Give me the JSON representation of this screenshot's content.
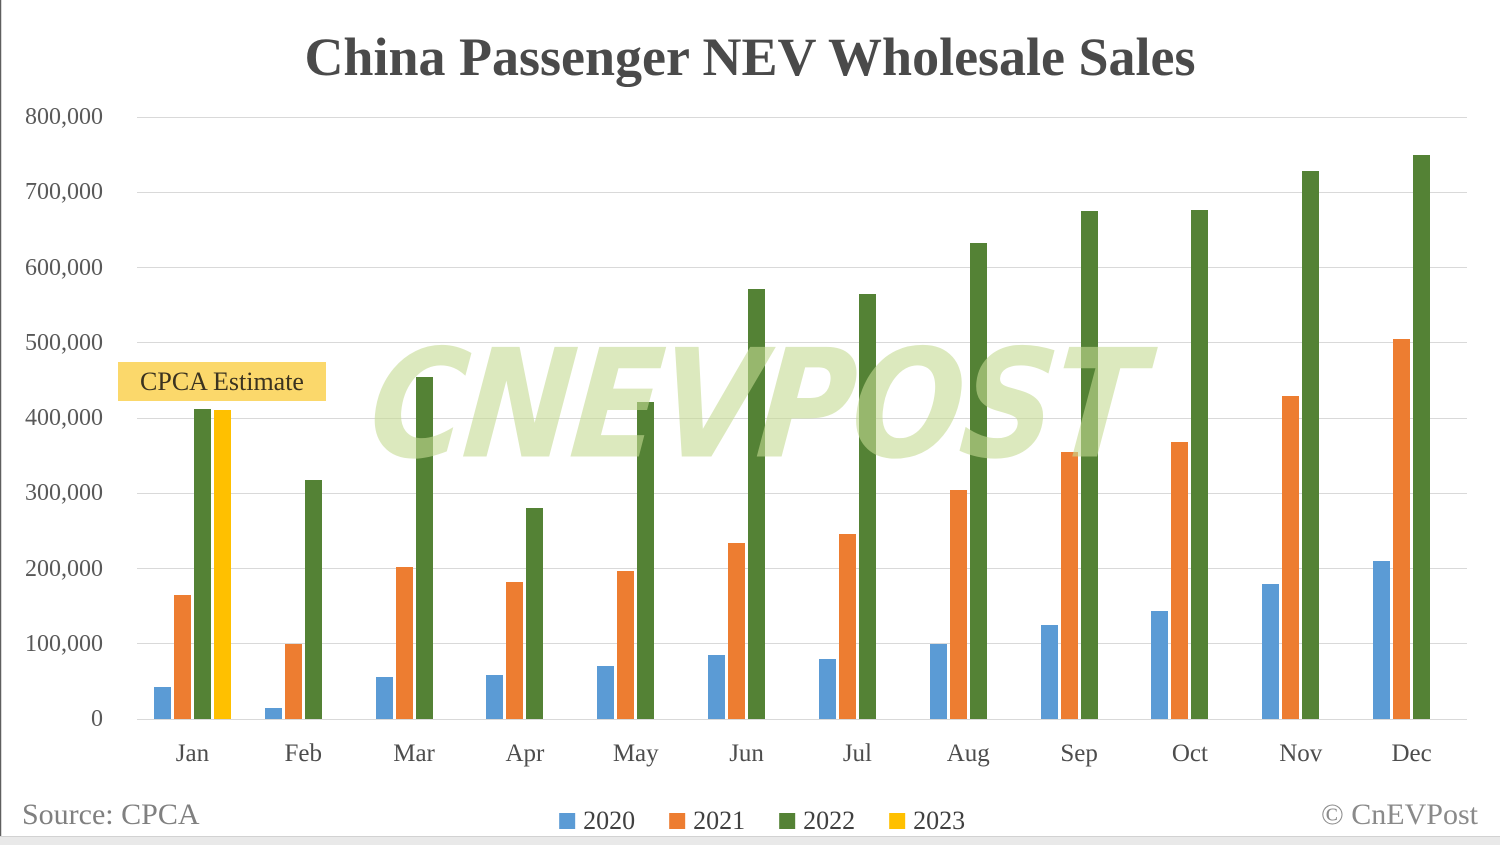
{
  "title": "China Passenger NEV Wholesale Sales",
  "annotation": {
    "label": "CPCA Estimate"
  },
  "watermark": {
    "text": "CNEVPOST"
  },
  "footer": {
    "source": "Source: CPCA",
    "copyright": "© CnEVPost"
  },
  "colors": {
    "series_2020": "#5B9BD5",
    "series_2021": "#ED7D31",
    "series_2022": "#548235",
    "series_2023": "#FFC000",
    "gridline": "#D9D9D9",
    "title_text": "#4A4A4A",
    "axis_text": "#595959",
    "annotation_bg": "#FBD86B",
    "watermark_green": "#D9E8BA",
    "footer_text": "#808080"
  },
  "chart_data": {
    "type": "bar",
    "title": "China Passenger NEV Wholesale Sales",
    "xlabel": "",
    "ylabel": "",
    "categories": [
      "Jan",
      "Feb",
      "Mar",
      "Apr",
      "May",
      "Jun",
      "Jul",
      "Aug",
      "Sep",
      "Oct",
      "Nov",
      "Dec"
    ],
    "series": [
      {
        "name": "2020",
        "color": "#5B9BD5",
        "values": [
          42000,
          15000,
          56000,
          58000,
          70000,
          85000,
          80000,
          100000,
          125000,
          144000,
          180000,
          210000
        ]
      },
      {
        "name": "2021",
        "color": "#ED7D31",
        "values": [
          165000,
          100000,
          202000,
          182000,
          197000,
          234000,
          246000,
          304000,
          355000,
          368000,
          429000,
          505000
        ]
      },
      {
        "name": "2022",
        "color": "#548235",
        "values": [
          412000,
          317000,
          455000,
          280000,
          421000,
          571000,
          565000,
          632000,
          675000,
          676000,
          728000,
          750000
        ]
      },
      {
        "name": "2023",
        "color": "#FFC000",
        "values": [
          410000,
          null,
          null,
          null,
          null,
          null,
          null,
          null,
          null,
          null,
          null,
          null
        ]
      }
    ],
    "ylim": [
      0,
      800000
    ],
    "ytick_interval": 100000,
    "ytick_labels": [
      "0",
      "100,000",
      "200,000",
      "300,000",
      "400,000",
      "500,000",
      "600,000",
      "700,000",
      "800,000"
    ],
    "grid": true,
    "legend_position": "bottom",
    "annotations": [
      {
        "text": "CPCA Estimate",
        "applies_to": "2023 Jan bar"
      }
    ]
  }
}
